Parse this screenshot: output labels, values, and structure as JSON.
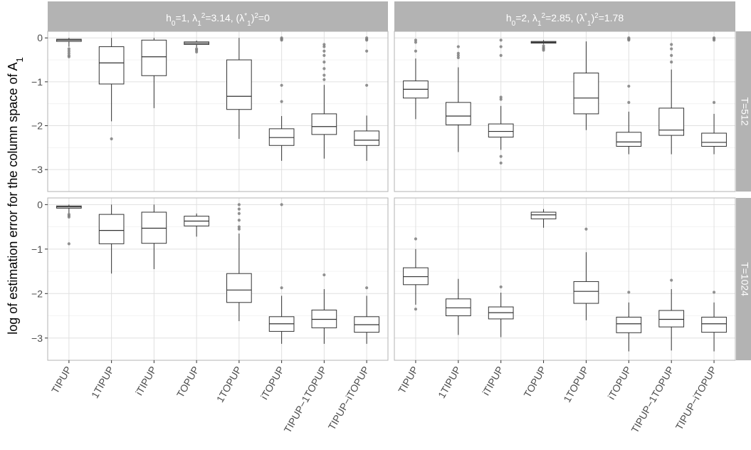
{
  "chart_data": {
    "type": "boxplot",
    "ylabel_main": "log of estimation error for the column space of A",
    "ylabel_sub": "1",
    "methods": [
      "TIPUP",
      "1TIPUP",
      "iTIPUP",
      "TOPUP",
      "1TOPUP",
      "iTOPUP",
      "TIPUP−1TOPUP",
      "TIPUP−iTOPUP"
    ],
    "yticks": [
      0,
      -1,
      -2,
      -3
    ],
    "ytick_labels": [
      "0",
      "−1",
      "−2",
      "−3"
    ],
    "ylim": [
      -3.5,
      0.15
    ],
    "columns": [
      {
        "h_part": "h",
        "h_sub": "0",
        "h_val": "=1, ",
        "l_part": "λ",
        "l_sub": "1",
        "l_sup": "2",
        "l_val": "=3.14, ",
        "s_part": "(λ",
        "s_sup1": "*",
        "s_sub": "1",
        "s_close": ")",
        "s_sup2": "2",
        "s_val": "=0"
      },
      {
        "h_part": "h",
        "h_sub": "0",
        "h_val": "=2, ",
        "l_part": "λ",
        "l_sub": "1",
        "l_sup": "2",
        "l_val": "=2.85, ",
        "s_part": "(λ",
        "s_sup1": "*",
        "s_sub": "1",
        "s_close": ")",
        "s_sup2": "2",
        "s_val": "=1.78"
      }
    ],
    "rows": [
      "T=512",
      "T=1024"
    ],
    "panels": [
      {
        "row": 0,
        "col": 0,
        "boxes": [
          {
            "method": "TIPUP",
            "lw": -0.2,
            "q1": -0.08,
            "med": -0.05,
            "q3": -0.03,
            "uw": 0,
            "out": [
              -0.25,
              -0.3,
              -0.35,
              -0.4,
              -0.43
            ]
          },
          {
            "method": "1TIPUP",
            "lw": -1.9,
            "q1": -1.05,
            "med": -0.57,
            "q3": -0.2,
            "uw": 0,
            "out": [
              -2.3
            ]
          },
          {
            "method": "iTIPUP",
            "lw": -1.6,
            "q1": -0.86,
            "med": -0.43,
            "q3": -0.05,
            "uw": 0,
            "out": []
          },
          {
            "method": "TOPUP",
            "lw": -0.22,
            "q1": -0.15,
            "med": -0.12,
            "q3": -0.09,
            "uw": -0.06,
            "out": [
              -0.25,
              -0.28,
              -0.32
            ]
          },
          {
            "method": "1TOPUP",
            "lw": -2.3,
            "q1": -1.63,
            "med": -1.33,
            "q3": -0.5,
            "uw": 0,
            "out": []
          },
          {
            "method": "iTOPUP",
            "lw": -2.8,
            "q1": -2.45,
            "med": -2.27,
            "q3": -2.07,
            "uw": -1.78,
            "out": [
              -1.08,
              -1.45,
              -0.02,
              -0.05,
              0,
              -0.03
            ]
          },
          {
            "method": "TIPUP−1TOPUP",
            "lw": -2.75,
            "q1": -2.2,
            "med": -2.02,
            "q3": -1.73,
            "uw": -1.07,
            "out": [
              -0.95,
              -0.85,
              -0.7,
              -0.55,
              -0.4,
              -0.3,
              -0.2,
              -0.15
            ]
          },
          {
            "method": "TIPUP−iTOPUP",
            "lw": -2.8,
            "q1": -2.45,
            "med": -2.33,
            "q3": -2.12,
            "uw": -1.77,
            "out": [
              -1.08,
              -0.3,
              -0.03,
              -0.05,
              0
            ]
          }
        ]
      },
      {
        "row": 0,
        "col": 1,
        "boxes": [
          {
            "method": "TIPUP",
            "lw": -1.85,
            "q1": -1.37,
            "med": -1.17,
            "q3": -0.98,
            "uw": -0.47,
            "out": [
              -0.3,
              -0.1,
              -0.05
            ]
          },
          {
            "method": "1TIPUP",
            "lw": -2.6,
            "q1": -1.98,
            "med": -1.78,
            "q3": -1.47,
            "uw": -0.67,
            "out": [
              -0.45,
              -0.4,
              -0.35,
              -0.2
            ]
          },
          {
            "method": "iTIPUP",
            "lw": -2.55,
            "q1": -2.26,
            "med": -2.13,
            "q3": -1.96,
            "uw": -1.55,
            "out": [
              -2.7,
              -2.85,
              -1.4,
              -1.35,
              -0.4,
              -0.2,
              -0.05
            ]
          },
          {
            "method": "TOPUP",
            "lw": -0.14,
            "q1": -0.12,
            "med": -0.1,
            "q3": -0.08,
            "uw": -0.05,
            "out": [
              -0.18,
              -0.22,
              -0.25,
              -0.28
            ]
          },
          {
            "method": "1TOPUP",
            "lw": -2.1,
            "q1": -1.73,
            "med": -1.37,
            "q3": -0.8,
            "uw": -0.08,
            "out": []
          },
          {
            "method": "iTOPUP",
            "lw": -2.65,
            "q1": -2.47,
            "med": -2.37,
            "q3": -2.15,
            "uw": -1.68,
            "out": [
              -1.1,
              -1.47,
              -0.05,
              -0.03,
              0,
              -0.02
            ]
          },
          {
            "method": "TIPUP−1TOPUP",
            "lw": -2.65,
            "q1": -2.22,
            "med": -2.1,
            "q3": -1.6,
            "uw": -0.72,
            "out": [
              -0.55,
              -0.4,
              -0.25,
              -0.15
            ]
          },
          {
            "method": "TIPUP−iTOPUP",
            "lw": -2.65,
            "q1": -2.47,
            "med": -2.38,
            "q3": -2.17,
            "uw": -1.73,
            "out": [
              -1.47,
              -0.05,
              -0.02,
              0
            ]
          }
        ]
      },
      {
        "row": 1,
        "col": 0,
        "boxes": [
          {
            "method": "TIPUP",
            "lw": -0.2,
            "q1": -0.08,
            "med": -0.05,
            "q3": -0.03,
            "uw": 0,
            "out": [
              -0.22,
              -0.25,
              -0.28,
              -0.88
            ]
          },
          {
            "method": "1TIPUP",
            "lw": -1.55,
            "q1": -0.88,
            "med": -0.58,
            "q3": -0.22,
            "uw": 0,
            "out": []
          },
          {
            "method": "iTIPUP",
            "lw": -1.45,
            "q1": -0.87,
            "med": -0.53,
            "q3": -0.17,
            "uw": 0,
            "out": []
          },
          {
            "method": "TOPUP",
            "lw": -0.72,
            "q1": -0.48,
            "med": -0.37,
            "q3": -0.26,
            "uw": -0.2,
            "out": []
          },
          {
            "method": "1TOPUP",
            "lw": -2.62,
            "q1": -2.2,
            "med": -1.92,
            "q3": -1.55,
            "uw": -0.65,
            "out": [
              -0.55,
              -0.5,
              -0.35,
              -0.2,
              -0.1,
              0
            ]
          },
          {
            "method": "iTOPUP",
            "lw": -3.13,
            "q1": -2.85,
            "med": -2.68,
            "q3": -2.52,
            "uw": -2.05,
            "out": [
              -1.87,
              0
            ]
          },
          {
            "method": "TIPUP−1TOPUP",
            "lw": -3.13,
            "q1": -2.77,
            "med": -2.58,
            "q3": -2.37,
            "uw": -1.9,
            "out": [
              -1.58
            ]
          },
          {
            "method": "TIPUP−iTOPUP",
            "lw": -3.13,
            "q1": -2.87,
            "med": -2.7,
            "q3": -2.52,
            "uw": -2.05,
            "out": [
              -1.87
            ]
          }
        ]
      },
      {
        "row": 1,
        "col": 1,
        "boxes": [
          {
            "method": "TIPUP",
            "lw": -2.25,
            "q1": -1.8,
            "med": -1.62,
            "q3": -1.42,
            "uw": -1.0,
            "out": [
              -0.77,
              -2.35
            ]
          },
          {
            "method": "1TIPUP",
            "lw": -2.93,
            "q1": -2.5,
            "med": -2.32,
            "q3": -2.12,
            "uw": -1.67,
            "out": []
          },
          {
            "method": "iTIPUP",
            "lw": -2.98,
            "q1": -2.57,
            "med": -2.43,
            "q3": -2.3,
            "uw": -1.98,
            "out": [
              -1.85
            ]
          },
          {
            "method": "TOPUP",
            "lw": -0.52,
            "q1": -0.32,
            "med": -0.23,
            "q3": -0.17,
            "uw": -0.1,
            "out": []
          },
          {
            "method": "1TOPUP",
            "lw": -2.6,
            "q1": -2.22,
            "med": -1.95,
            "q3": -1.73,
            "uw": -1.07,
            "out": [
              -0.55
            ]
          },
          {
            "method": "iTOPUP",
            "lw": -3.3,
            "q1": -2.88,
            "med": -2.68,
            "q3": -2.53,
            "uw": -2.2,
            "out": [
              -1.97
            ]
          },
          {
            "method": "TIPUP−1TOPUP",
            "lw": -3.28,
            "q1": -2.75,
            "med": -2.58,
            "q3": -2.38,
            "uw": -1.9,
            "out": [
              -1.7
            ]
          },
          {
            "method": "TIPUP−iTOPUP",
            "lw": -3.3,
            "q1": -2.87,
            "med": -2.68,
            "q3": -2.53,
            "uw": -2.2,
            "out": [
              -1.97
            ]
          }
        ]
      }
    ]
  }
}
